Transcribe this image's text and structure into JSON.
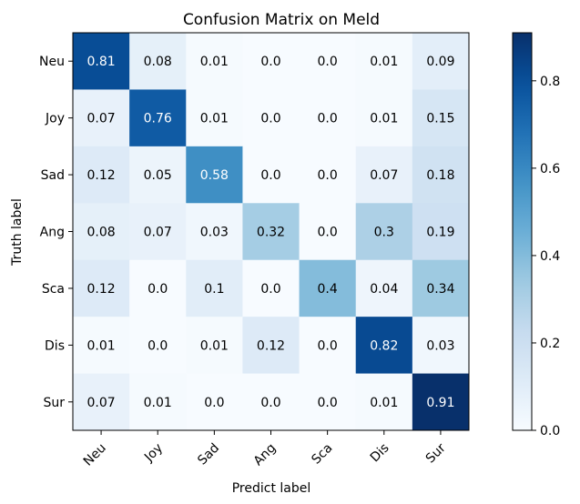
{
  "chart_data": {
    "type": "heatmap",
    "title": "Confusion Matrix on Meld",
    "xlabel": "Predict label",
    "ylabel": "Truth label",
    "x_categories": [
      "Neu",
      "Joy",
      "Sad",
      "Ang",
      "Sca",
      "Dis",
      "Sur"
    ],
    "y_categories": [
      "Neu",
      "Joy",
      "Sad",
      "Ang",
      "Sca",
      "Dis",
      "Sur"
    ],
    "values": [
      [
        0.81,
        0.08,
        0.01,
        0.0,
        0.0,
        0.01,
        0.09
      ],
      [
        0.07,
        0.76,
        0.01,
        0.0,
        0.0,
        0.01,
        0.15
      ],
      [
        0.12,
        0.05,
        0.58,
        0.0,
        0.0,
        0.07,
        0.18
      ],
      [
        0.08,
        0.07,
        0.03,
        0.32,
        0.0,
        0.3,
        0.19
      ],
      [
        0.12,
        0.0,
        0.1,
        0.0,
        0.4,
        0.04,
        0.34
      ],
      [
        0.01,
        0.0,
        0.01,
        0.12,
        0.0,
        0.82,
        0.03
      ],
      [
        0.07,
        0.01,
        0.0,
        0.0,
        0.0,
        0.01,
        0.91
      ]
    ],
    "labels": [
      [
        "0.81",
        "0.08",
        "0.01",
        "0.0",
        "0.0",
        "0.01",
        "0.09"
      ],
      [
        "0.07",
        "0.76",
        "0.01",
        "0.0",
        "0.0",
        "0.01",
        "0.15"
      ],
      [
        "0.12",
        "0.05",
        "0.58",
        "0.0",
        "0.0",
        "0.07",
        "0.18"
      ],
      [
        "0.08",
        "0.07",
        "0.03",
        "0.32",
        "0.0",
        "0.3",
        "0.19"
      ],
      [
        "0.12",
        "0.0",
        "0.1",
        "0.0",
        "0.4",
        "0.04",
        "0.34"
      ],
      [
        "0.01",
        "0.0",
        "0.01",
        "0.12",
        "0.0",
        "0.82",
        "0.03"
      ],
      [
        "0.07",
        "0.01",
        "0.0",
        "0.0",
        "0.0",
        "0.01",
        "0.91"
      ]
    ],
    "colormap": "Blues",
    "vmin": 0.0,
    "vmax": 0.91,
    "colorbar_ticks": [
      0.0,
      0.2,
      0.4,
      0.6,
      0.8
    ],
    "colorbar_tick_labels": [
      "0.0",
      "0.2",
      "0.4",
      "0.6",
      "0.8"
    ],
    "grid": false,
    "legend": "colorbar-right"
  }
}
